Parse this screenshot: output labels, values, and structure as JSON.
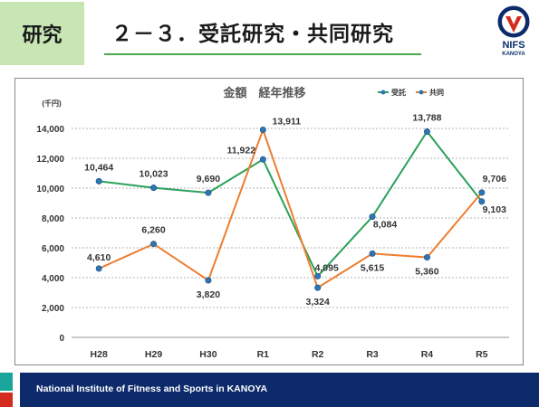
{
  "section_tag": "研究",
  "slide_title": "２－３．受託研究・共同研究",
  "logo": {
    "name": "NIFS",
    "sub": "KANOYA",
    "badge": "KANOYA"
  },
  "footer": {
    "text": "National Institute of Fitness and Sports in KANOYA"
  },
  "colors": {
    "green": "#2aa15a",
    "orange": "#ed7d31",
    "navy": "#0d2a6b",
    "point": "#2e75b6"
  },
  "chart_data": {
    "type": "line",
    "title": "金額　経年推移",
    "unit_label": "(千円)",
    "categories": [
      "H28",
      "H29",
      "H30",
      "R1",
      "R2",
      "R3",
      "R4",
      "R5"
    ],
    "series": [
      {
        "name": "受託",
        "values": [
          10464,
          10023,
          9690,
          11922,
          4095,
          8084,
          13788,
          9103
        ]
      },
      {
        "name": "共同",
        "values": [
          4610,
          6260,
          3820,
          13911,
          3324,
          5615,
          5360,
          9706
        ]
      }
    ],
    "labels": {
      "受託": [
        "10,464",
        "10,023",
        "9,690",
        "11,922",
        "4,095",
        "8,084",
        "13,788",
        "9,103"
      ],
      "共同": [
        "4,610",
        "6,260",
        "3,820",
        "13,911",
        "3,324",
        "5,615",
        "5,360",
        "9,706"
      ]
    },
    "yticks": [
      "0",
      "2,000",
      "4,000",
      "6,000",
      "8,000",
      "10,000",
      "12,000",
      "14,000"
    ],
    "ylim": [
      0,
      14000
    ],
    "legend_position": "top-right",
    "grid": true
  }
}
